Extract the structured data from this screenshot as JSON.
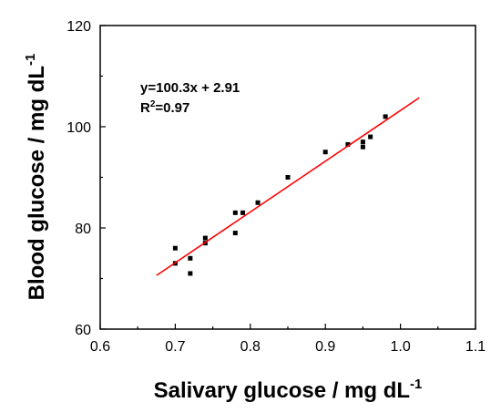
{
  "chart_data": {
    "type": "scatter",
    "title": "",
    "xlabel": "Salivary glucose / mg dL",
    "xlabel_sup": "-1",
    "ylabel": "Blood glucose / mg dL",
    "ylabel_sup": "-1",
    "xlim": [
      0.6,
      1.1
    ],
    "ylim": [
      60,
      120
    ],
    "xticks": [
      "0.6",
      "0.7",
      "0.8",
      "0.9",
      "1.0",
      "1.1"
    ],
    "yticks": [
      "60",
      "80",
      "100",
      "120"
    ],
    "points": [
      {
        "x": 0.7,
        "y": 76.0
      },
      {
        "x": 0.7,
        "y": 73.0
      },
      {
        "x": 0.72,
        "y": 71.0
      },
      {
        "x": 0.72,
        "y": 74.0
      },
      {
        "x": 0.74,
        "y": 77.0
      },
      {
        "x": 0.74,
        "y": 78.0
      },
      {
        "x": 0.78,
        "y": 79.0
      },
      {
        "x": 0.78,
        "y": 83.0
      },
      {
        "x": 0.79,
        "y": 83.0
      },
      {
        "x": 0.81,
        "y": 85.0
      },
      {
        "x": 0.85,
        "y": 90.0
      },
      {
        "x": 0.9,
        "y": 95.0
      },
      {
        "x": 0.93,
        "y": 96.5
      },
      {
        "x": 0.95,
        "y": 96.0
      },
      {
        "x": 0.95,
        "y": 97.0
      },
      {
        "x": 0.96,
        "y": 98.0
      },
      {
        "x": 0.98,
        "y": 102.0
      }
    ],
    "fit": {
      "x_start": 0.675,
      "x_end": 1.025,
      "slope": 100.3,
      "intercept": 2.91,
      "color": "#ff0000"
    },
    "equation_text": "y=100.3x + 2.91",
    "r2_prefix": "R",
    "r2_sup": "2",
    "r2_value": "=0.97",
    "marker_color": "#000000",
    "grid": false
  }
}
